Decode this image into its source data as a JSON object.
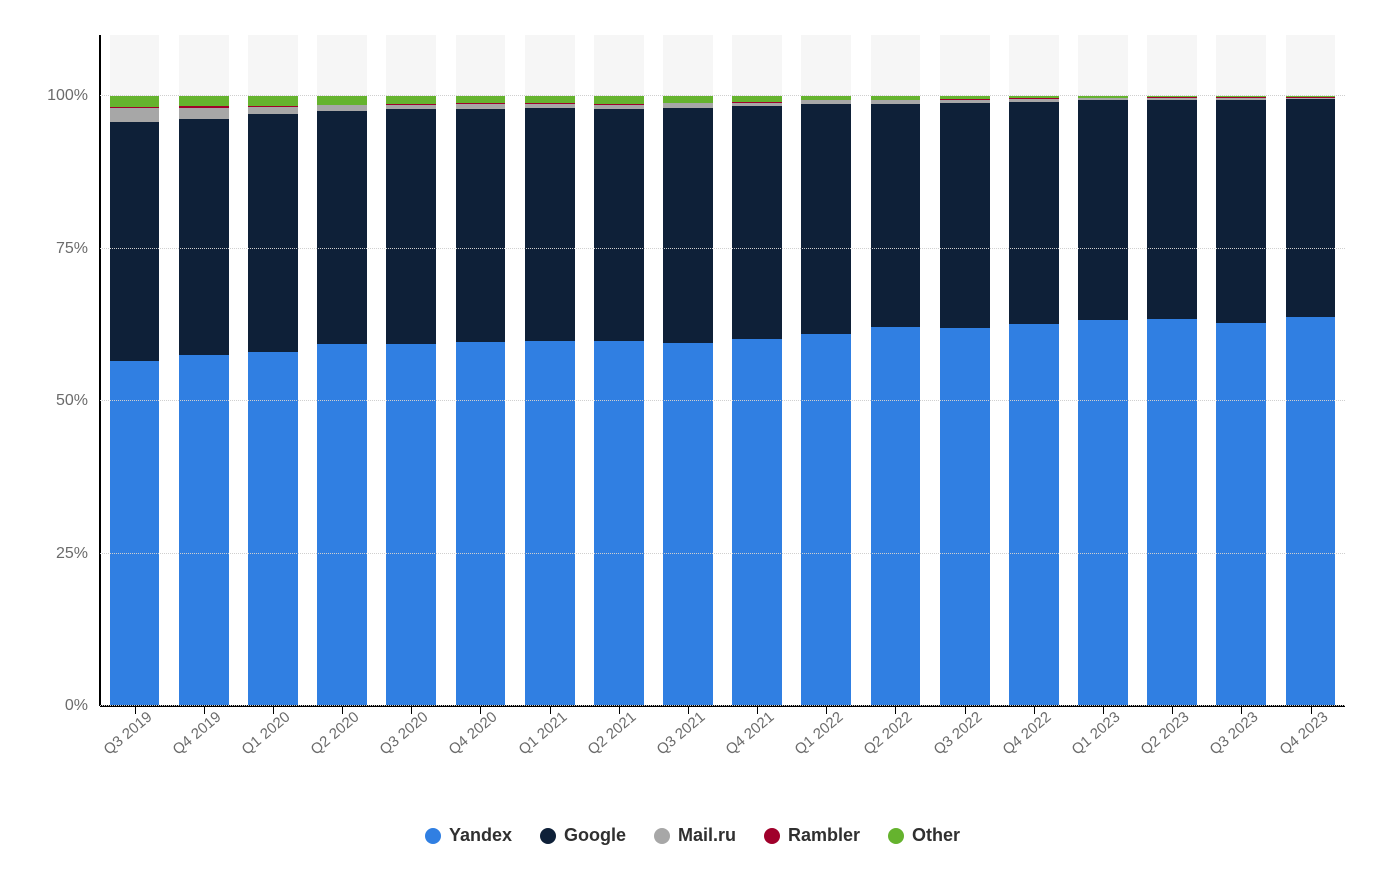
{
  "chart": {
    "type": "stacked-bar",
    "background_color": "#ffffff",
    "bar_bg_color": "#f6f6f6",
    "grid_color": "#cfcfcf",
    "axis_color": "#000000",
    "tick_label_color": "#6b6b6b",
    "tick_fontsize": 16,
    "legend_fontsize": 18,
    "bar_width_ratio": 0.72,
    "ylim": [
      0,
      110
    ],
    "yticks": [
      0,
      25,
      50,
      75,
      100
    ],
    "ytick_labels": [
      "0%",
      "25%",
      "50%",
      "75%",
      "100%"
    ],
    "series": [
      {
        "key": "yandex",
        "label": "Yandex",
        "color": "#307fe2"
      },
      {
        "key": "google",
        "label": "Google",
        "color": "#0e2038"
      },
      {
        "key": "mailru",
        "label": "Mail.ru",
        "color": "#a7a7a7"
      },
      {
        "key": "rambler",
        "label": "Rambler",
        "color": "#a0002b"
      },
      {
        "key": "other",
        "label": "Other",
        "color": "#65b32e"
      }
    ],
    "categories": [
      "Q3 2019",
      "Q4 2019",
      "Q1 2020",
      "Q2 2020",
      "Q3 2020",
      "Q4 2020",
      "Q1 2021",
      "Q2 2021",
      "Q3 2021",
      "Q4 2021",
      "Q1 2022",
      "Q2 2022",
      "Q3 2022",
      "Q4 2022",
      "Q1 2023",
      "Q2 2023",
      "Q3 2023",
      "Q4 2023"
    ],
    "data": {
      "yandex": [
        56.6,
        57.5,
        58.1,
        59.3,
        59.3,
        59.7,
        59.8,
        59.8,
        59.5,
        60.2,
        61.0,
        62.1,
        61.9,
        62.6,
        63.3,
        63.4,
        62.8,
        63.8
      ],
      "google": [
        39.2,
        38.8,
        38.9,
        38.2,
        38.5,
        38.2,
        38.2,
        38.0,
        38.6,
        38.1,
        37.7,
        36.6,
        37.0,
        36.5,
        36.0,
        36.0,
        36.6,
        35.7
      ],
      "mailru": [
        2.2,
        1.8,
        1.2,
        1.0,
        0.8,
        0.8,
        0.7,
        0.8,
        0.7,
        0.6,
        0.6,
        0.6,
        0.5,
        0.4,
        0.3,
        0.3,
        0.3,
        0.2
      ],
      "rambler": [
        0.2,
        0.2,
        0.1,
        0.1,
        0.1,
        0.1,
        0.1,
        0.1,
        0.1,
        0.1,
        0.1,
        0.1,
        0.1,
        0.1,
        0.1,
        0.1,
        0.1,
        0.1
      ],
      "other": [
        1.8,
        1.7,
        1.7,
        1.4,
        1.3,
        1.2,
        1.2,
        1.3,
        1.1,
        1.0,
        0.6,
        0.6,
        0.5,
        0.4,
        0.3,
        0.2,
        0.2,
        0.2
      ]
    }
  }
}
